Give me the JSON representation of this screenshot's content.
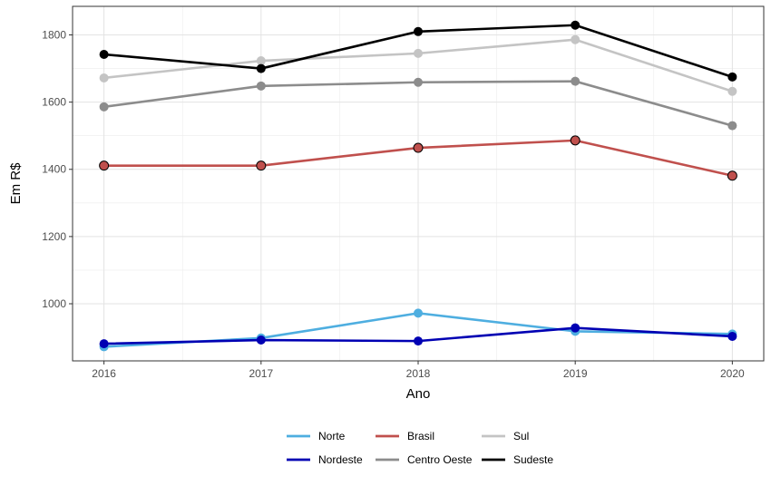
{
  "chart_data": {
    "type": "line",
    "title": "",
    "xlabel": "Ano",
    "ylabel": "Em R$",
    "x": [
      2016,
      2017,
      2018,
      2019,
      2020
    ],
    "x_tick_labels": [
      "2016",
      "2017",
      "2018",
      "2019",
      "2020"
    ],
    "y_ticks": [
      1000,
      1200,
      1400,
      1600,
      1800
    ],
    "y_tick_labels": [
      "1000",
      "1200",
      "1400",
      "1600",
      "1800"
    ],
    "xlim": [
      2015.8,
      2020.2
    ],
    "ylim": [
      830,
      1885
    ],
    "grid": true,
    "legend_position": "bottom",
    "series": [
      {
        "name": "Norte",
        "color": "#4eaee0",
        "values": [
          872,
          898,
          972,
          918,
          910
        ]
      },
      {
        "name": "Nordeste",
        "color": "#0000b3",
        "values": [
          881,
          892,
          889,
          928,
          903
        ]
      },
      {
        "name": "Brasil",
        "color": "#c0504d",
        "values": [
          1411,
          1411,
          1464,
          1486,
          1381
        ]
      },
      {
        "name": "Centro Oeste",
        "color": "#8c8c8c",
        "values": [
          1586,
          1648,
          1659,
          1662,
          1530
        ]
      },
      {
        "name": "Sul",
        "color": "#c4c4c4",
        "values": [
          1672,
          1723,
          1745,
          1786,
          1632
        ]
      },
      {
        "name": "Sudeste",
        "color": "#000000",
        "values": [
          1742,
          1700,
          1810,
          1829,
          1675
        ]
      }
    ],
    "legend_order": [
      "Norte",
      "Nordeste",
      "Brasil",
      "Centro Oeste",
      "Sul",
      "Sudeste"
    ]
  }
}
